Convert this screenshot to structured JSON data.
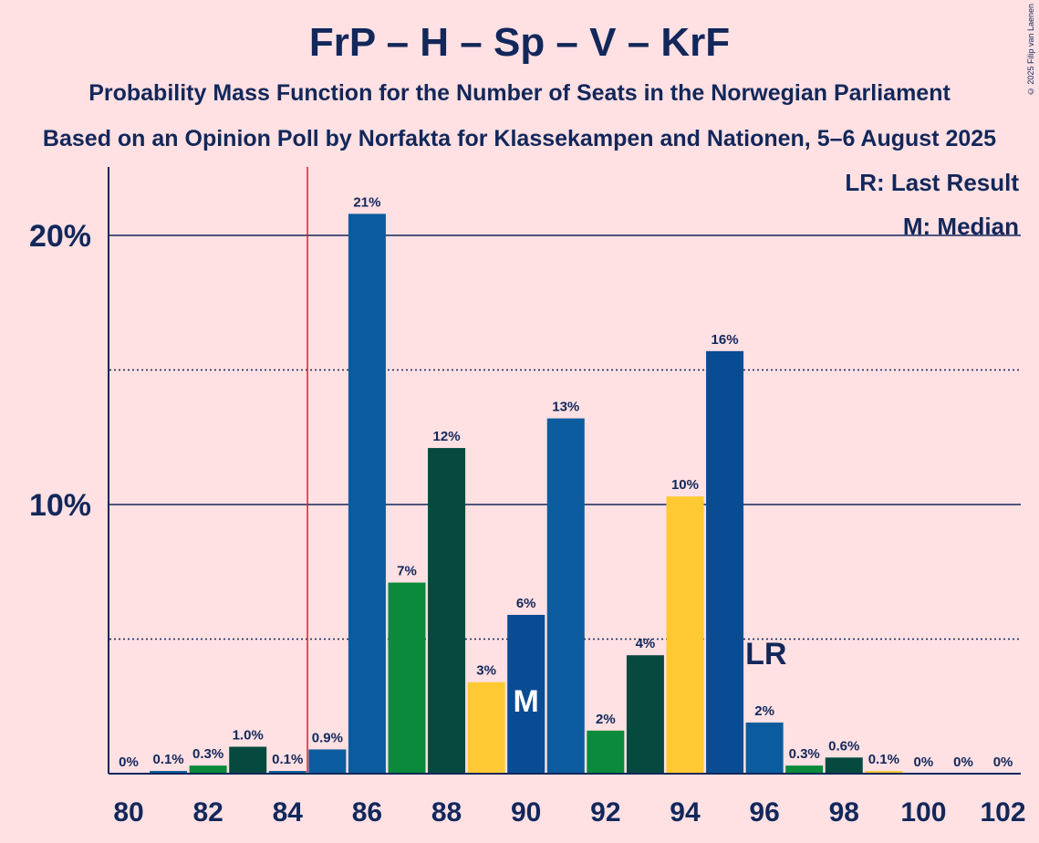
{
  "chart_data": {
    "type": "bar",
    "title": "FrP – H – Sp – V – KrF",
    "subtitle": "Probability Mass Function for the Number of Seats in the Norwegian Parliament",
    "subtitle2": "Based on an Opinion Poll by Norfakta for Klassekampen and Nationen, 5–6 August 2025",
    "copyright": "© 2025 Filip van Laenen",
    "xlabel": "",
    "ylabel": "",
    "categories": [
      80,
      81,
      82,
      83,
      84,
      85,
      86,
      87,
      88,
      89,
      90,
      91,
      92,
      93,
      94,
      95,
      96,
      97,
      98,
      99,
      100,
      101,
      102
    ],
    "values": [
      0,
      0.1,
      0.3,
      1.0,
      0.1,
      0.9,
      20.8,
      7.1,
      12.1,
      3.4,
      5.9,
      13.2,
      1.6,
      4.4,
      10.3,
      15.7,
      1.9,
      0.3,
      0.6,
      0.1,
      0,
      0,
      0
    ],
    "labels": [
      "0%",
      "0.1%",
      "0.3%",
      "1.0%",
      "0.1%",
      "0.9%",
      "21%",
      "7%",
      "12%",
      "3%",
      "6%",
      "13%",
      "2%",
      "4%",
      "10%",
      "16%",
      "2%",
      "0.3%",
      "0.6%",
      "0.1%",
      "0%",
      "0%",
      "0%"
    ],
    "colors": [
      "#0A5C9E",
      "#0A5C9E",
      "#0A8A3A",
      "#05493F",
      "#0A5C9E",
      "#0A5C9E",
      "#0A5C9E",
      "#0A8A3A",
      "#05493F",
      "#FFC933",
      "#0A4C94",
      "#0A5C9E",
      "#0A8A3A",
      "#05493F",
      "#FFC933",
      "#0A4C94",
      "#0A5C9E",
      "#0A8A3A",
      "#05493F",
      "#FFC933",
      "#0A4C94",
      "#0A5C9E",
      "#0A8A3A"
    ],
    "x_tick_labels": [
      "80",
      "82",
      "84",
      "86",
      "88",
      "90",
      "92",
      "94",
      "96",
      "98",
      "100",
      "102"
    ],
    "y_tick_labels": [
      "10%",
      "20%"
    ],
    "ylim": [
      0,
      22.6
    ],
    "majority_line_seat": 84.5,
    "median": {
      "seat": 90,
      "label": "M"
    },
    "last_result": {
      "seat": 96,
      "label": "LR"
    },
    "legend": [
      "LR: Last Result",
      "M: Median"
    ]
  }
}
